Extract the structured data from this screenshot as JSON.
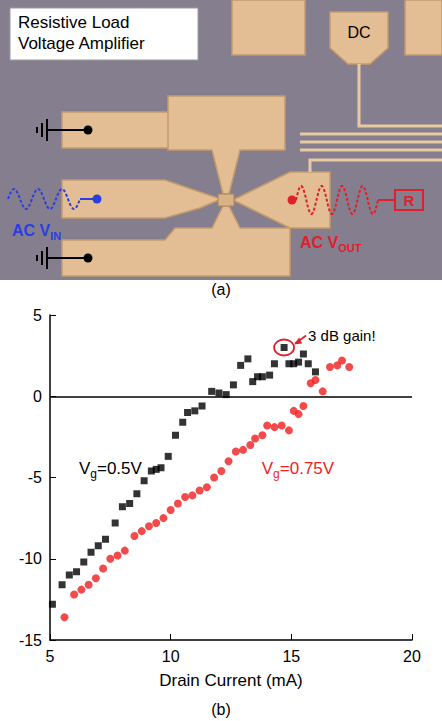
{
  "panel_a": {
    "type": "micrograph",
    "title": "Resistive Load Voltage Amplifier",
    "dc_label": "DC",
    "input_label": {
      "text": "AC V",
      "sub": "IN"
    },
    "output_label": {
      "text": "AC V",
      "sub": "OUT"
    },
    "load_label": "R",
    "panel_label": "(a)"
  },
  "chart_data": {
    "type": "scatter",
    "panel_label": "(b)",
    "x_label": "Drain Current (mA)",
    "xlim": [
      5,
      20
    ],
    "xticks": [
      5,
      10,
      15,
      20
    ],
    "ylim": [
      -15,
      5
    ],
    "yticks": [
      -15,
      -10,
      -5,
      0,
      5
    ],
    "grid": false,
    "hline": 0,
    "annotations": [
      {
        "text": "3 dB gain!"
      }
    ],
    "series": [
      {
        "annotation": {
          "text": "V",
          "sub": "g",
          "after": "=0.5V"
        },
        "color": "#000000",
        "marker": "square",
        "x": [
          5.1,
          5.5,
          5.8,
          6.1,
          6.4,
          6.7,
          7.0,
          7.3,
          7.7,
          8.0,
          8.3,
          8.6,
          8.9,
          9.2,
          9.4,
          9.6,
          9.9,
          10.2,
          10.5,
          10.7,
          11.0,
          11.3,
          11.7,
          12.0,
          12.3,
          12.6,
          12.9,
          13.2,
          13.4,
          13.6,
          13.8,
          14.1,
          14.3,
          14.7,
          14.9,
          15.1,
          15.3,
          15.5,
          15.7,
          16.0
        ],
        "values": [
          -12.8,
          -11.6,
          -11.0,
          -10.8,
          -10.2,
          -9.6,
          -9.2,
          -8.8,
          -7.8,
          -6.8,
          -6.6,
          -6.0,
          -5.2,
          -4.6,
          -4.5,
          -4.4,
          -3.7,
          -2.4,
          -1.6,
          -1.0,
          -0.9,
          -0.6,
          0.3,
          0.2,
          0.1,
          0.7,
          1.9,
          2.3,
          0.9,
          1.2,
          1.2,
          1.3,
          2.0,
          3.0,
          2.0,
          2.0,
          2.1,
          2.6,
          2.0,
          1.5
        ]
      },
      {
        "annotation": {
          "text": "V",
          "sub": "g",
          "after": "=0.75V"
        },
        "color": "#f01e1e",
        "marker": "circle",
        "x": [
          5.6,
          6.0,
          6.3,
          6.6,
          6.9,
          7.2,
          7.5,
          7.8,
          8.1,
          8.5,
          8.8,
          9.1,
          9.4,
          9.7,
          10.0,
          10.3,
          10.6,
          10.9,
          11.2,
          11.5,
          11.8,
          12.1,
          12.4,
          12.7,
          13.0,
          13.3,
          13.5,
          13.8,
          14.0,
          14.3,
          14.6,
          14.9,
          15.1,
          15.3,
          15.5,
          15.8,
          16.0,
          16.3,
          16.6,
          16.9,
          17.1,
          17.4
        ],
        "values": [
          -13.6,
          -12.2,
          -11.9,
          -11.6,
          -11.2,
          -10.6,
          -10.0,
          -9.8,
          -9.5,
          -8.6,
          -8.3,
          -8.0,
          -7.8,
          -7.5,
          -7.0,
          -6.6,
          -6.2,
          -6.1,
          -5.8,
          -5.6,
          -5.0,
          -4.6,
          -4.0,
          -3.4,
          -3.3,
          -3.0,
          -2.6,
          -2.4,
          -1.8,
          -1.9,
          -1.8,
          -2.1,
          -0.9,
          -1.1,
          -0.6,
          0.8,
          1.0,
          0.3,
          1.8,
          1.9,
          2.2,
          1.8
        ]
      }
    ]
  }
}
